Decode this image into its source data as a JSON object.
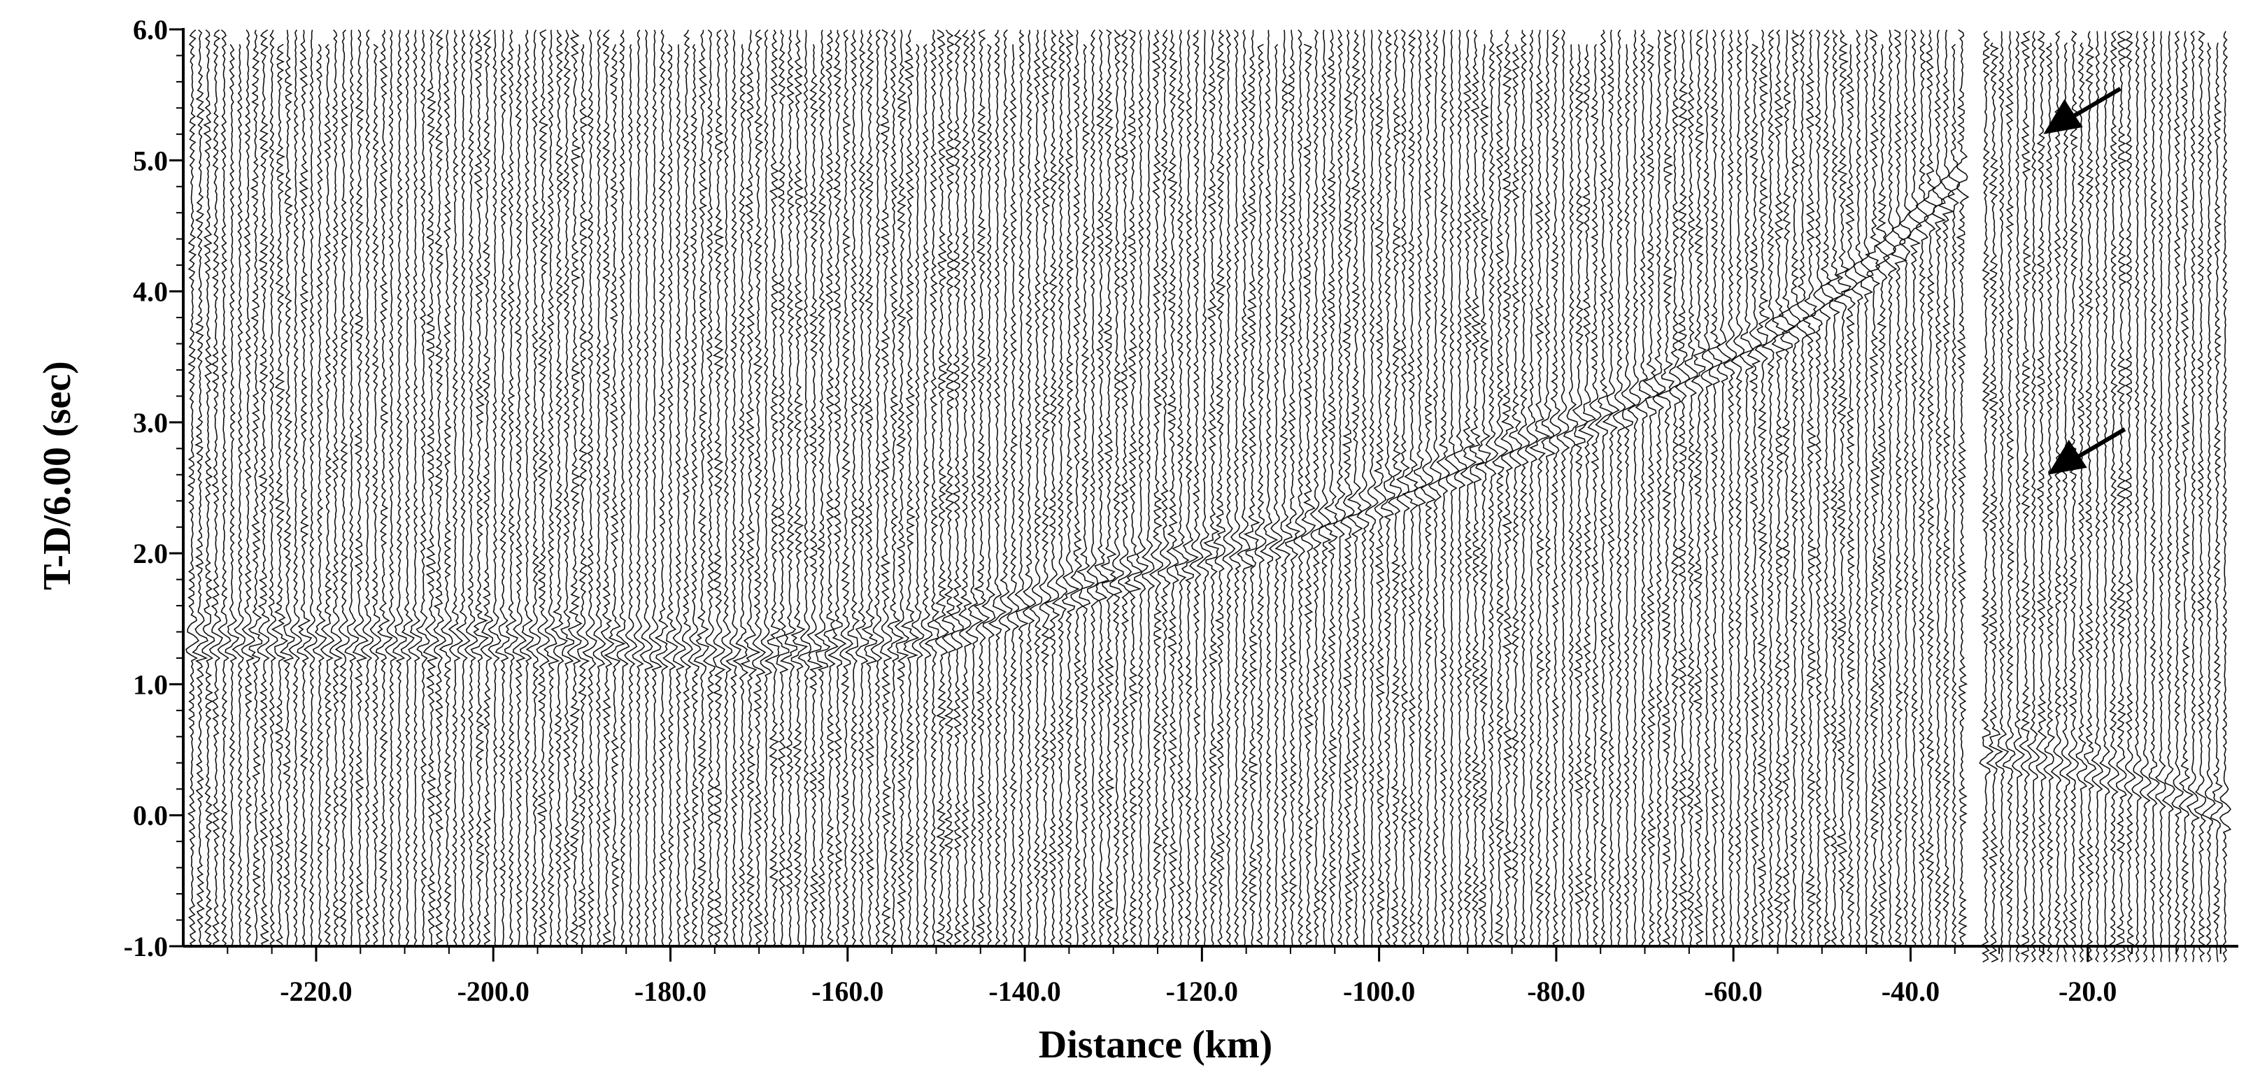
{
  "chart_data": {
    "type": "seismic-record-section",
    "title": "",
    "xlabel": "Distance (km)",
    "ylabel": "T-D/6.00 (sec)",
    "xlim": [
      -235.0,
      -3.0
    ],
    "ylim": [
      -1.0,
      6.0
    ],
    "x_ticks": [
      {
        "value": -220.0,
        "label": "-220.0"
      },
      {
        "value": -200.0,
        "label": "-200.0"
      },
      {
        "value": -180.0,
        "label": "-180.0"
      },
      {
        "value": -160.0,
        "label": "-160.0"
      },
      {
        "value": -140.0,
        "label": "-140.0"
      },
      {
        "value": -120.0,
        "label": "-120.0"
      },
      {
        "value": -100.0,
        "label": "-100.0"
      },
      {
        "value": -80.0,
        "label": "-80.0"
      },
      {
        "value": -60.0,
        "label": "-60.0"
      },
      {
        "value": -40.0,
        "label": "-40.0"
      },
      {
        "value": -20.0,
        "label": "-20.0"
      }
    ],
    "y_ticks": [
      {
        "value": 6.0,
        "label": "6.0"
      },
      {
        "value": 5.0,
        "label": "5.0"
      },
      {
        "value": 4.0,
        "label": "4.0"
      },
      {
        "value": 3.0,
        "label": "3.0"
      },
      {
        "value": 2.0,
        "label": "2.0"
      },
      {
        "value": 1.0,
        "label": "1.0"
      },
      {
        "value": 0.0,
        "label": "0.0"
      },
      {
        "value": -1.0,
        "label": "-1.0"
      }
    ],
    "trace_range": [
      -234.0,
      -4.0
    ],
    "trace_spacing_km": 0.9,
    "gap": [
      -33.5,
      -31.5
    ],
    "first_arrival": [
      {
        "x": -195,
        "t": 1.3
      },
      {
        "x": -170,
        "t": 1.2
      },
      {
        "x": -150,
        "t": 1.35
      },
      {
        "x": -130,
        "t": 1.8
      },
      {
        "x": -110,
        "t": 2.1
      },
      {
        "x": -90,
        "t": 2.65
      },
      {
        "x": -72,
        "t": 3.1
      },
      {
        "x": -55,
        "t": 3.65
      },
      {
        "x": -45,
        "t": 4.1
      },
      {
        "x": -34,
        "t": 4.85
      }
    ],
    "near_arrival": [
      {
        "x": -32,
        "t": 0.45
      },
      {
        "x": -25,
        "t": 0.4
      },
      {
        "x": -15,
        "t": 0.25
      },
      {
        "x": -4,
        "t": 0.0
      }
    ],
    "arrows": [
      {
        "x": -25.0,
        "t": 5.2
      },
      {
        "x": -24.5,
        "t": 2.6
      }
    ]
  }
}
